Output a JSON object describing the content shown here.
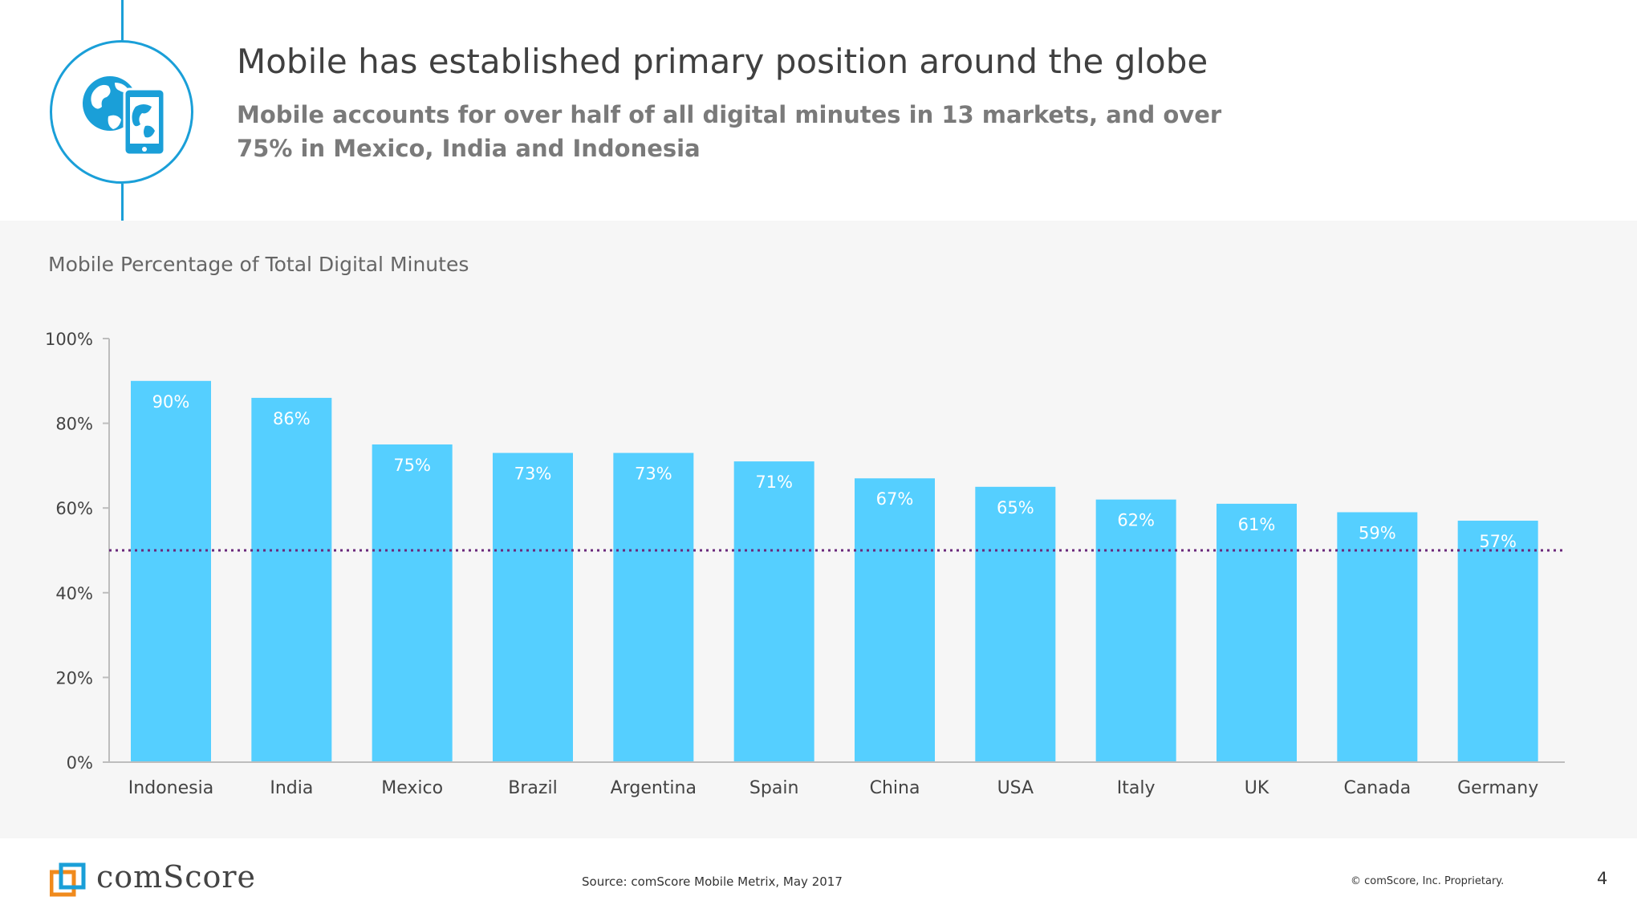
{
  "header": {
    "title": "Mobile has established primary position around the globe",
    "subtitle": "Mobile accounts for over half of all digital minutes in 13 markets, and over 75% in Mexico, India and Indonesia",
    "icon": "globe-phone-icon"
  },
  "chart_heading": "Mobile Percentage of Total Digital Minutes",
  "chart_data": {
    "type": "bar",
    "title": "Mobile Percentage of Total Digital Minutes",
    "categories": [
      "Indonesia",
      "India",
      "Mexico",
      "Brazil",
      "Argentina",
      "Spain",
      "China",
      "USA",
      "Italy",
      "UK",
      "Canada",
      "Germany"
    ],
    "values": [
      90,
      86,
      75,
      73,
      73,
      71,
      67,
      65,
      62,
      61,
      59,
      57
    ],
    "labels": [
      "90%",
      "86%",
      "75%",
      "73%",
      "73%",
      "71%",
      "67%",
      "65%",
      "62%",
      "61%",
      "59%",
      "57%"
    ],
    "ylim": [
      0,
      100
    ],
    "yticks": [
      0,
      20,
      40,
      60,
      80,
      100
    ],
    "ytick_labels": [
      "0%",
      "20%",
      "40%",
      "60%",
      "80%",
      "100%"
    ],
    "reference_line": 50,
    "xlabel": "",
    "ylabel": "",
    "bar_color": "#55cfff",
    "reference_color": "#6b2a7c"
  },
  "footer": {
    "logo_text": "comScore",
    "source": "Source: comScore Mobile Metrix, May 2017",
    "copyright": "© comScore, Inc. Proprietary.",
    "page_number": "4"
  },
  "colors": {
    "accent": "#1a9fd8",
    "logo_orange": "#f08a1c",
    "logo_blue": "#1a9fd8"
  }
}
